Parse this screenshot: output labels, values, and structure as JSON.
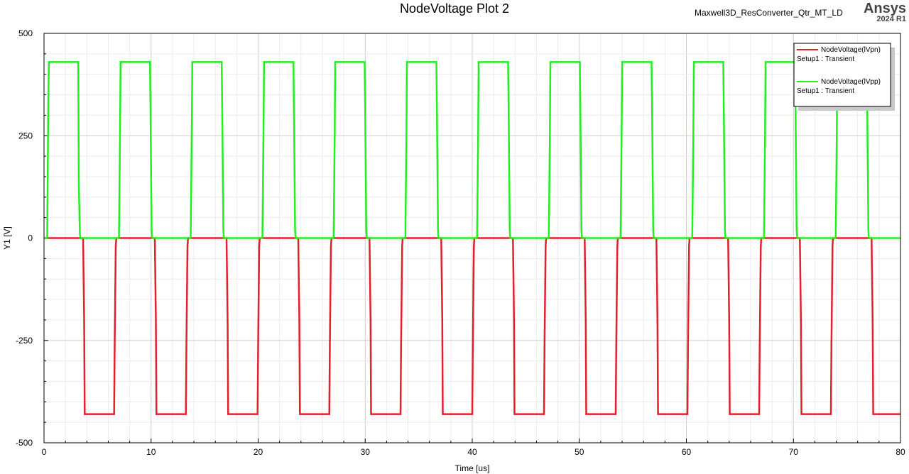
{
  "header": {
    "title": "NodeVoltage Plot 2",
    "project": "Maxwell3D_ResConverter_Qtr_MT_LD",
    "brand": "Ansys",
    "version": "2024 R1"
  },
  "chart_data": {
    "type": "line",
    "title": "NodeVoltage Plot 2",
    "xlabel": "Time [us]",
    "ylabel": "Y1 [V]",
    "xlim": [
      0,
      80
    ],
    "ylim": [
      -500,
      500
    ],
    "xticks": [
      0,
      10,
      20,
      30,
      40,
      50,
      60,
      70,
      80
    ],
    "yticks": [
      -500,
      -250,
      0,
      250,
      500
    ],
    "grid": true,
    "legend_position": "top-right",
    "series": [
      {
        "name": "NodeVoltage(lVpn)",
        "setup": "Setup1 : Transient",
        "color": "#e0202a",
        "x": [
          0,
          3.65,
          3.75,
          3.8,
          3.85,
          6.55,
          6.6,
          6.7,
          6.75,
          10.35,
          10.45,
          10.5,
          10.55,
          13.25,
          13.3,
          13.4,
          13.45,
          17.05,
          17.15,
          17.2,
          17.25,
          19.95,
          20.0,
          20.1,
          20.15,
          23.75,
          23.85,
          23.9,
          23.95,
          26.65,
          26.7,
          26.8,
          26.85,
          30.4,
          30.5,
          30.55,
          30.6,
          33.3,
          33.35,
          33.45,
          33.5,
          37.1,
          37.2,
          37.25,
          37.3,
          40.0,
          40.05,
          40.15,
          40.2,
          43.8,
          43.9,
          43.95,
          44.0,
          46.7,
          46.75,
          46.85,
          46.9,
          50.5,
          50.6,
          50.65,
          50.7,
          53.4,
          53.45,
          53.55,
          53.6,
          57.2,
          57.3,
          57.35,
          57.4,
          60.1,
          60.15,
          60.25,
          60.3,
          63.9,
          64.0,
          64.05,
          64.1,
          66.8,
          66.85,
          66.95,
          67.0,
          70.6,
          70.7,
          70.75,
          70.8,
          73.5,
          73.55,
          73.65,
          73.7,
          77.3,
          77.4,
          77.45,
          77.5,
          80
        ],
        "y": [
          0,
          0,
          -200,
          -430,
          -430,
          -430,
          -260,
          -20,
          0,
          0,
          -200,
          -430,
          -430,
          -430,
          -260,
          -20,
          0,
          0,
          -200,
          -430,
          -430,
          -430,
          -260,
          -20,
          0,
          0,
          -200,
          -430,
          -430,
          -430,
          -260,
          -20,
          0,
          0,
          -200,
          -430,
          -430,
          -430,
          -260,
          -20,
          0,
          0,
          -200,
          -430,
          -430,
          -430,
          -260,
          -20,
          0,
          0,
          -200,
          -430,
          -430,
          -430,
          -260,
          -20,
          0,
          0,
          -200,
          -430,
          -430,
          -430,
          -260,
          -20,
          0,
          0,
          -200,
          -430,
          -430,
          -430,
          -260,
          -20,
          0,
          0,
          -200,
          -430,
          -430,
          -430,
          -260,
          -20,
          0,
          0,
          -200,
          -430,
          -430,
          -430,
          -260,
          -20,
          0,
          0,
          -200,
          -430,
          -430,
          -430
        ]
      },
      {
        "name": "NodeVoltage(lVpp)",
        "setup": "Setup1 : Transient",
        "color": "#22ee22",
        "x": [
          0,
          0.3,
          0.4,
          0.45,
          0.5,
          3.2,
          3.25,
          3.35,
          3.4,
          7.0,
          7.1,
          7.15,
          7.2,
          9.9,
          9.95,
          10.05,
          10.1,
          13.7,
          13.8,
          13.85,
          13.9,
          16.6,
          16.65,
          16.75,
          16.8,
          20.4,
          20.5,
          20.55,
          20.6,
          23.3,
          23.35,
          23.45,
          23.5,
          27.05,
          27.15,
          27.2,
          27.25,
          29.95,
          30.0,
          30.1,
          30.15,
          33.75,
          33.85,
          33.9,
          33.95,
          36.65,
          36.7,
          36.8,
          36.85,
          40.45,
          40.55,
          40.6,
          40.65,
          43.35,
          43.4,
          43.5,
          43.55,
          47.15,
          47.25,
          47.3,
          47.35,
          50.05,
          50.1,
          50.2,
          50.25,
          53.85,
          53.95,
          54.0,
          54.05,
          56.75,
          56.8,
          56.9,
          56.95,
          60.55,
          60.65,
          60.7,
          60.75,
          63.45,
          63.5,
          63.6,
          63.65,
          67.25,
          67.35,
          67.4,
          67.45,
          70.15,
          70.2,
          70.3,
          70.35,
          73.95,
          74.05,
          74.1,
          74.15,
          76.85,
          76.9,
          77.0,
          77.05,
          80
        ],
        "y": [
          0,
          0,
          330,
          430,
          430,
          430,
          130,
          10,
          0,
          0,
          250,
          430,
          430,
          430,
          300,
          20,
          0,
          0,
          250,
          430,
          430,
          430,
          300,
          20,
          0,
          0,
          250,
          430,
          430,
          430,
          300,
          20,
          0,
          0,
          250,
          430,
          430,
          430,
          300,
          20,
          0,
          0,
          250,
          430,
          430,
          430,
          300,
          20,
          0,
          0,
          250,
          430,
          430,
          430,
          300,
          20,
          0,
          0,
          250,
          430,
          430,
          430,
          300,
          20,
          0,
          0,
          250,
          430,
          430,
          430,
          300,
          20,
          0,
          0,
          250,
          430,
          430,
          430,
          300,
          20,
          0,
          0,
          250,
          430,
          430,
          430,
          300,
          20,
          0,
          0,
          250,
          430,
          430,
          430,
          300,
          20,
          0,
          0
        ]
      }
    ]
  }
}
